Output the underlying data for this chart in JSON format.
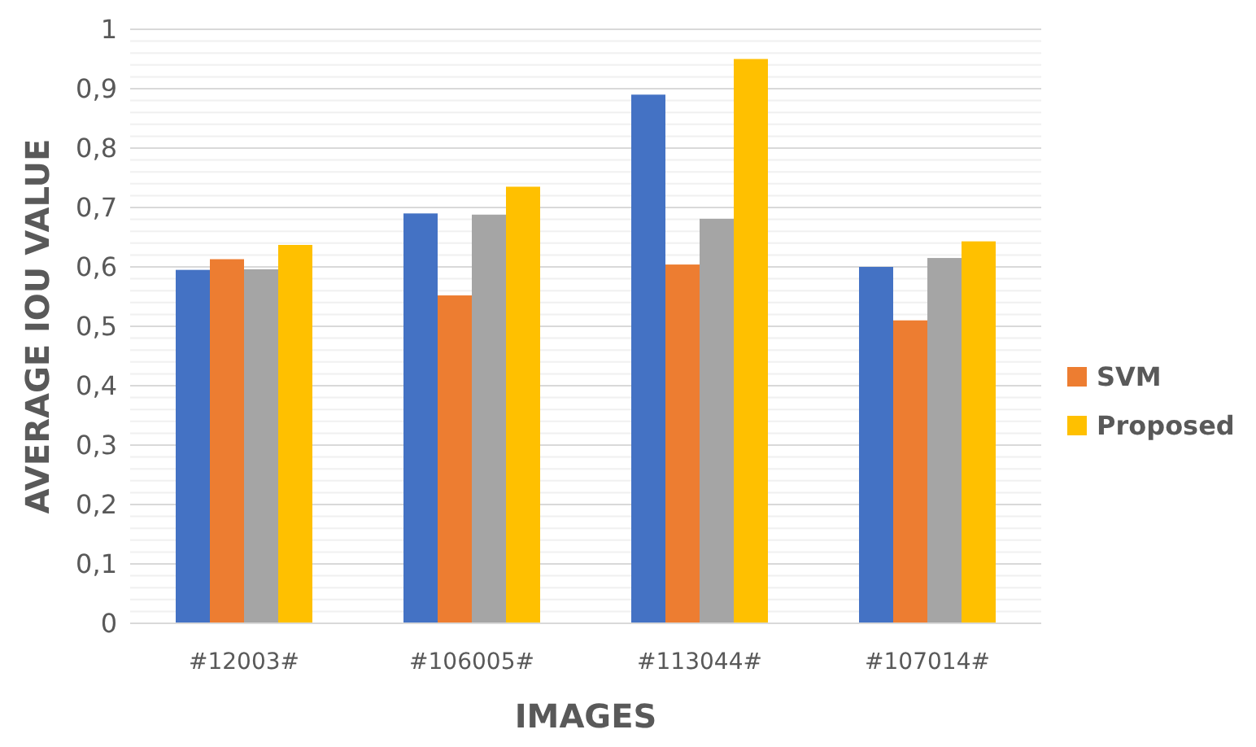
{
  "chart_data": {
    "type": "bar",
    "xlabel": "IMAGES",
    "ylabel": "AVERAGE IOU VALUE",
    "categories": [
      "#12003#",
      "#106005#",
      "#113044#",
      "#107014#"
    ],
    "series": [
      {
        "color": "#4472c4",
        "values": [
          0.595,
          0.69,
          0.89,
          0.6
        ]
      },
      {
        "name": "SVM",
        "color": "#ed7d31",
        "values": [
          0.613,
          0.552,
          0.604,
          0.51
        ]
      },
      {
        "color": "#a5a5a5",
        "values": [
          0.596,
          0.688,
          0.681,
          0.615
        ]
      },
      {
        "name": "Proposed",
        "color": "#ffc000",
        "values": [
          0.637,
          0.735,
          0.95,
          0.643
        ]
      }
    ],
    "ylim": [
      0,
      1
    ],
    "yticks": [
      0,
      {
        "value": 0.02,
        "label": null
      },
      {
        "value": 0.04,
        "label": null
      },
      {
        "value": 0.06,
        "label": null
      },
      {
        "value": 0.08,
        "label": null
      },
      {
        "value": 0.1,
        "label": "0,1"
      },
      {
        "value": 0.12,
        "label": null
      },
      {
        "value": 0.14,
        "label": null
      },
      {
        "value": 0.16,
        "label": null
      },
      {
        "value": 0.18,
        "label": null
      },
      {
        "value": 0.2,
        "label": "0,2"
      },
      {
        "value": 0.22,
        "label": null
      },
      {
        "value": 0.24,
        "label": null
      },
      {
        "value": 0.26,
        "label": null
      },
      {
        "value": 0.28,
        "label": null
      },
      {
        "value": 0.3,
        "label": "0,3"
      },
      {
        "value": 0.32,
        "label": null
      },
      {
        "value": 0.34,
        "label": null
      },
      {
        "value": 0.36,
        "label": null
      },
      {
        "value": 0.38,
        "label": null
      },
      {
        "value": 0.4,
        "label": "0,4"
      },
      {
        "value": 0.42,
        "label": null
      },
      {
        "value": 0.44,
        "label": null
      },
      {
        "value": 0.46,
        "label": null
      },
      {
        "value": 0.48,
        "label": null
      },
      {
        "value": 0.5,
        "label": "0,5"
      },
      {
        "value": 0.52,
        "label": null
      },
      {
        "value": 0.54,
        "label": null
      },
      {
        "value": 0.56,
        "label": null
      },
      {
        "value": 0.58,
        "label": null
      },
      {
        "value": 0.6,
        "label": "0,6"
      },
      {
        "value": 0.62,
        "label": null
      },
      {
        "value": 0.64,
        "label": null
      },
      {
        "value": 0.66,
        "label": null
      },
      {
        "value": 0.68,
        "label": null
      },
      {
        "value": 0.7,
        "label": "0,7"
      },
      {
        "value": 0.72,
        "label": null
      },
      {
        "value": 0.74,
        "label": null
      },
      {
        "value": 0.76,
        "label": null
      },
      {
        "value": 0.78,
        "label": null
      },
      {
        "value": 0.8,
        "label": "0,8"
      },
      {
        "value": 0.82,
        "label": null
      },
      {
        "value": 0.84,
        "label": null
      },
      {
        "value": 0.86,
        "label": null
      },
      {
        "value": 0.88,
        "label": null
      },
      {
        "value": 0.9,
        "label": "0,9"
      },
      {
        "value": 0.92,
        "label": null
      },
      {
        "value": 0.94,
        "label": null
      },
      {
        "value": 0.96,
        "label": null
      },
      {
        "value": 0.98,
        "label": null
      },
      1
    ],
    "grid": "y",
    "legend": "right"
  }
}
